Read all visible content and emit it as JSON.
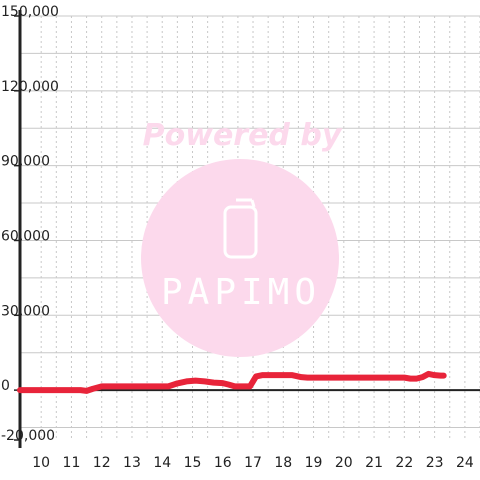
{
  "chart_data": {
    "type": "line",
    "title": "",
    "xlabel": "",
    "ylabel": "",
    "xlim": [
      9.3,
      24.5
    ],
    "ylim": [
      -20000,
      150000
    ],
    "grid": true,
    "legend": "none",
    "x_ticks": [
      10,
      11,
      12,
      13,
      14,
      15,
      16,
      17,
      18,
      19,
      20,
      21,
      22,
      23,
      24
    ],
    "x_tick_labels": [
      "10",
      "11",
      "12",
      "13",
      "14",
      "15",
      "16",
      "17",
      "18",
      "19",
      "20",
      "21",
      "22",
      "23",
      "24"
    ],
    "y_ticks": [
      -20000,
      0,
      30000,
      60000,
      90000,
      120000,
      150000
    ],
    "y_tick_labels": [
      "-20,000",
      "0",
      "30,000",
      "60,000",
      "90,000",
      "120,000",
      "150,000"
    ],
    "series": [
      {
        "color": "#e8243a",
        "x": [
          9.3,
          11.3,
          11.5,
          11.7,
          12.0,
          14.2,
          14.5,
          14.8,
          15.1,
          15.4,
          15.7,
          16.0,
          16.2,
          16.4,
          16.7,
          16.9,
          17.1,
          17.3,
          18.3,
          18.6,
          18.8,
          21.8,
          22.0,
          22.2,
          22.4,
          22.6,
          22.8,
          23.0,
          23.2,
          23.3
        ],
        "y": [
          0,
          0,
          -300,
          500,
          1500,
          1500,
          2700,
          3500,
          3800,
          3500,
          3000,
          2800,
          2200,
          1500,
          1500,
          1500,
          5500,
          6000,
          6000,
          5200,
          5000,
          5000,
          5000,
          4600,
          4600,
          5200,
          6500,
          6000,
          5800,
          5800
        ]
      }
    ]
  },
  "watermark": {
    "text": "Powered by",
    "logo_text": "PAPIMO",
    "circle_color": "#fcd9ec",
    "text_color": "#fcd9ec",
    "logo_color": "#ffffff"
  }
}
